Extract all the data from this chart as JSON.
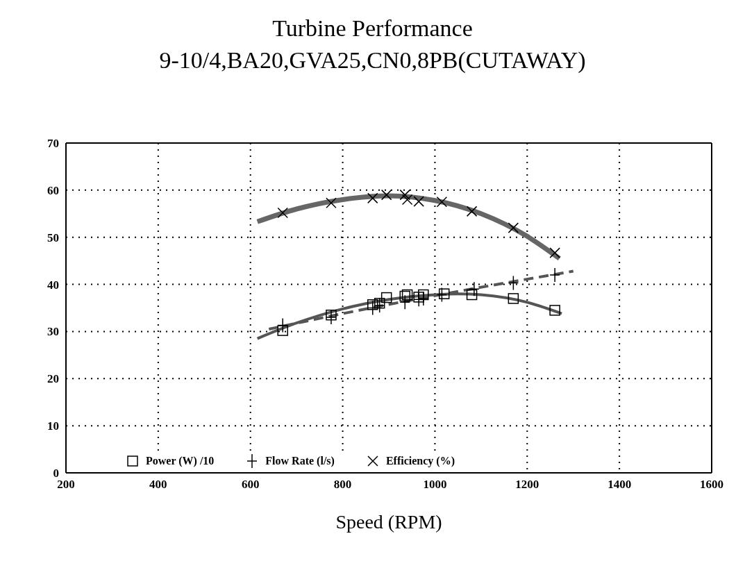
{
  "chart_data": {
    "type": "scatter",
    "title": "Turbine Performance",
    "subtitle": "9-10/4,BA20,GVA25,CN0,8PB(CUTAWAY)",
    "xlabel": "Speed (RPM)",
    "xlim": [
      200,
      1600
    ],
    "xticks": [
      200,
      400,
      600,
      800,
      1000,
      1200,
      1400,
      1600
    ],
    "ylim": [
      0,
      70
    ],
    "yticks": [
      0,
      10,
      20,
      30,
      40,
      50,
      60,
      70
    ],
    "grid": true,
    "legend": "bottom",
    "series": [
      {
        "name": "Power (W) /10",
        "marker": "square",
        "color": "#000000",
        "x": [
          670,
          775,
          865,
          880,
          895,
          935,
          940,
          965,
          975,
          1020,
          1080,
          1170,
          1260
        ],
        "values": [
          30.2,
          33.5,
          35.7,
          36,
          37.2,
          37.5,
          37.8,
          37.3,
          37.8,
          38,
          37.8,
          37,
          34.5
        ]
      },
      {
        "name": "Flow Rate (l/s)",
        "marker": "plus",
        "color": "#000000",
        "x": [
          670,
          775,
          865,
          880,
          935,
          965,
          975,
          1015,
          1085,
          1170,
          1260
        ],
        "values": [
          31.3,
          33,
          35,
          35.5,
          36.2,
          36.8,
          37,
          37.8,
          39,
          40.3,
          42
        ]
      },
      {
        "name": "Efficiency (%)",
        "marker": "cross",
        "color": "#000000",
        "x": [
          670,
          775,
          865,
          895,
          935,
          940,
          965,
          1015,
          1080,
          1170,
          1260
        ],
        "values": [
          55.2,
          57.3,
          58.3,
          59,
          59,
          58,
          57.6,
          57.5,
          55.5,
          52,
          46.7
        ]
      },
      {
        "type": "line",
        "color": "#555555",
        "line_style": "solid",
        "x": [
          615,
          700,
          800,
          900,
          1000,
          1050,
          1100,
          1200,
          1275
        ],
        "values": [
          28.5,
          31.8,
          34.8,
          36.8,
          37.8,
          38,
          37.8,
          36.2,
          33.8
        ]
      },
      {
        "type": "line",
        "color": "#555555",
        "line_style": "dashed",
        "x": [
          640,
          800,
          1000,
          1300
        ],
        "values": [
          30.5,
          33.8,
          37.6,
          42.8
        ]
      },
      {
        "type": "line",
        "color": "#666666",
        "line_style": "solid",
        "x": [
          615,
          700,
          800,
          900,
          1000,
          1100,
          1200,
          1270
        ],
        "values": [
          53.3,
          56,
          58,
          58.8,
          57.8,
          55,
          50.2,
          45.5
        ]
      }
    ]
  }
}
